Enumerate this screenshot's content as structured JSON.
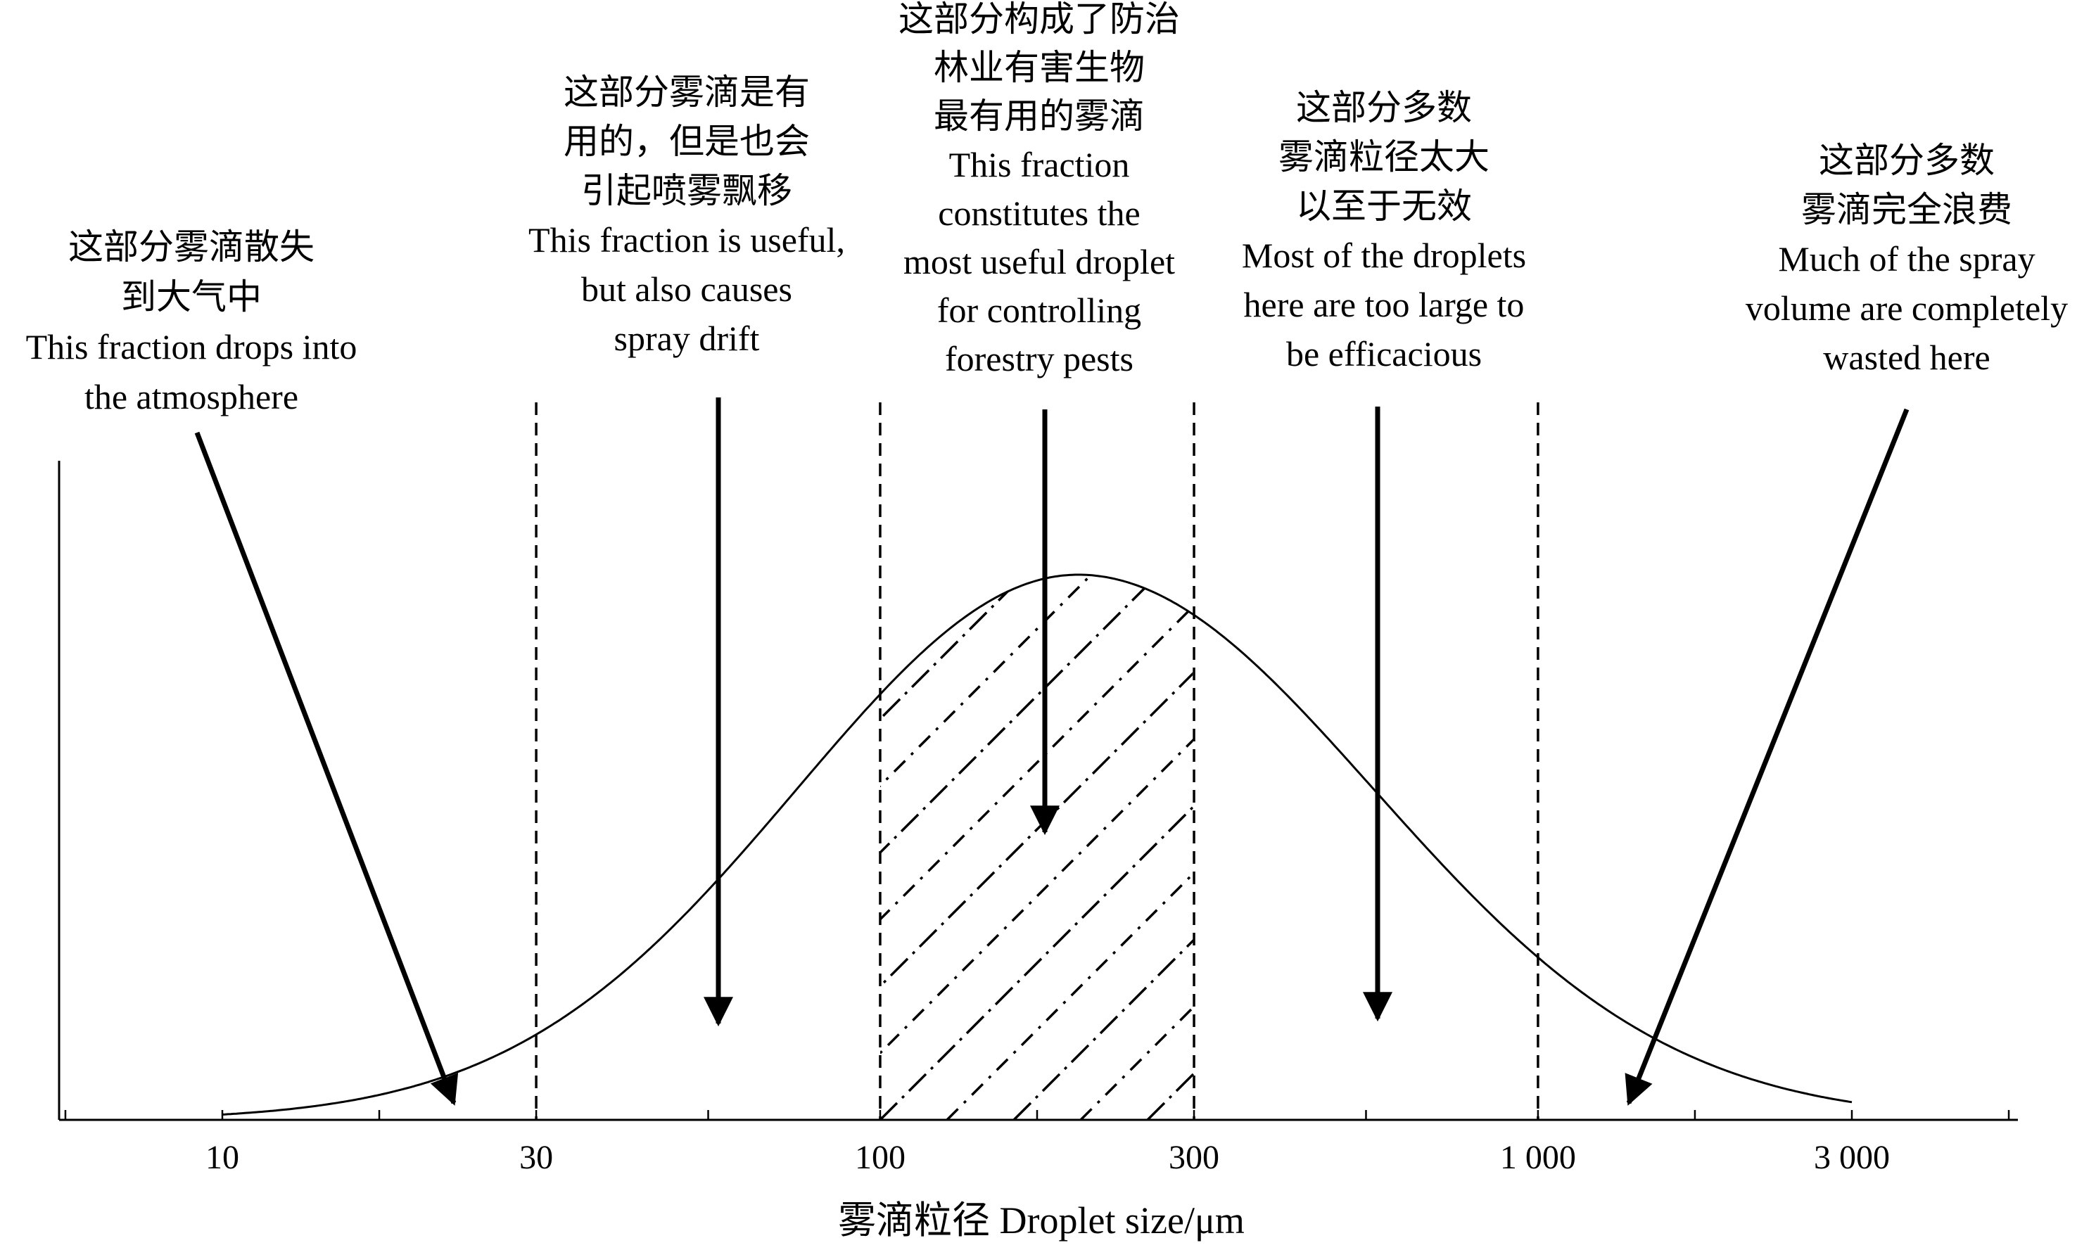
{
  "chart_data": {
    "type": "line",
    "xscale": "log",
    "xlabel": "雾滴粒径 Droplet size/μm",
    "x_ticks": [
      "10",
      "30",
      "100",
      "300",
      "1 000",
      "3 000"
    ],
    "x_tick_values": [
      10,
      30,
      100,
      300,
      1000,
      3000
    ],
    "boundaries": [
      30,
      100,
      300,
      1000
    ],
    "hatched_range": [
      100,
      300
    ],
    "curve_peak_x": 200,
    "regions": [
      {
        "id": "atmosphere",
        "x": 10,
        "lines": [
          "这部分雾滴散失",
          "到大气中",
          "This fraction drops into",
          "the atmosphere"
        ]
      },
      {
        "id": "drift",
        "x": 55,
        "lines": [
          "这部分雾滴是有",
          "用的，但是也会",
          "引起喷雾飘移",
          "This fraction is useful,",
          "but also causes",
          "spray drift"
        ]
      },
      {
        "id": "most-useful",
        "x": 175,
        "lines": [
          "这部分构成了防治",
          "林业有害生物",
          "最有用的雾滴",
          "This fraction",
          "constitutes the",
          "most useful droplet",
          "for controlling",
          "forestry pests"
        ]
      },
      {
        "id": "too-large",
        "x": 550,
        "lines": [
          "这部分多数",
          "雾滴粒径太大",
          "以至于无效",
          "Most of the droplets",
          "here are too large to",
          "be efficacious"
        ]
      },
      {
        "id": "wasted",
        "x": 2700,
        "lines": [
          "这部分多数",
          "雾滴完全浪费",
          "Much of the spray",
          "volume are completely",
          "wasted here"
        ]
      }
    ]
  }
}
